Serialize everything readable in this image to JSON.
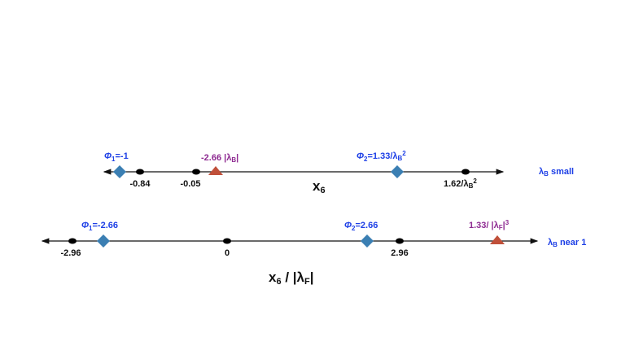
{
  "top": {
    "phi1": [
      "Φ",
      "1",
      "=-1"
    ],
    "lambda_point": [
      "-2.66 |λ",
      "B",
      "|"
    ],
    "phi2": [
      "Φ",
      "2",
      "=1.33/λ",
      "B",
      "2"
    ],
    "tick_1": "-0.84",
    "tick_2": "-0.05",
    "tick_3": [
      "1.62/λ",
      "B",
      "2"
    ],
    "regime": [
      "λ",
      "B",
      " small"
    ],
    "axis_label": [
      "x",
      "6"
    ]
  },
  "bottom": {
    "phi1": [
      "Φ",
      "1",
      "=-2.66"
    ],
    "phi2": [
      "Φ",
      "2",
      "=2.66"
    ],
    "lambda_point": [
      "1.33/ |λ",
      "F",
      "|",
      "3"
    ],
    "tick_1": "-2.96",
    "tick_2": "0",
    "tick_3": "2.96",
    "regime": [
      "λ",
      "B",
      " near 1"
    ],
    "axis_label": [
      "x",
      "6",
      " / |λ",
      "F",
      "|"
    ]
  }
}
